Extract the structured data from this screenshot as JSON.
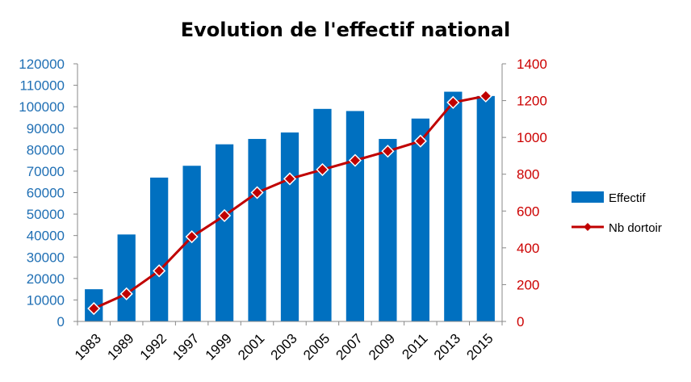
{
  "chart_data": {
    "type": "bar",
    "title": "Evolution de l'effectif national",
    "categories": [
      "1983",
      "1989",
      "1992",
      "1997",
      "1999",
      "2001",
      "2003",
      "2005",
      "2007",
      "2009",
      "2011",
      "2013",
      "2015"
    ],
    "series": [
      {
        "name": "Effectif",
        "type": "bar",
        "axis": "left",
        "color": "#0070c0",
        "values": [
          15000,
          40500,
          67000,
          72500,
          82500,
          85000,
          88000,
          99000,
          98000,
          85000,
          94500,
          107000,
          105000
        ]
      },
      {
        "name": "Nb dortoir",
        "type": "line",
        "axis": "right",
        "color": "#c00000",
        "marker": "diamond",
        "values": [
          70,
          150,
          275,
          460,
          575,
          700,
          775,
          825,
          875,
          925,
          980,
          1190,
          1225
        ]
      }
    ],
    "ylim_left": [
      0,
      120000
    ],
    "yticks_left": [
      "0",
      "10000",
      "20000",
      "30000",
      "40000",
      "50000",
      "60000",
      "70000",
      "80000",
      "90000",
      "100000",
      "110000",
      "120000"
    ],
    "ylim_right": [
      0,
      1400
    ],
    "yticks_right": [
      "0",
      "200",
      "400",
      "600",
      "800",
      "1000",
      "1200",
      "1400"
    ],
    "grid": false,
    "legend_position": "right",
    "colors": {
      "left_axis": "#1f6fb4",
      "right_axis": "#cc0000",
      "x_axis_labels": "#000000"
    }
  }
}
